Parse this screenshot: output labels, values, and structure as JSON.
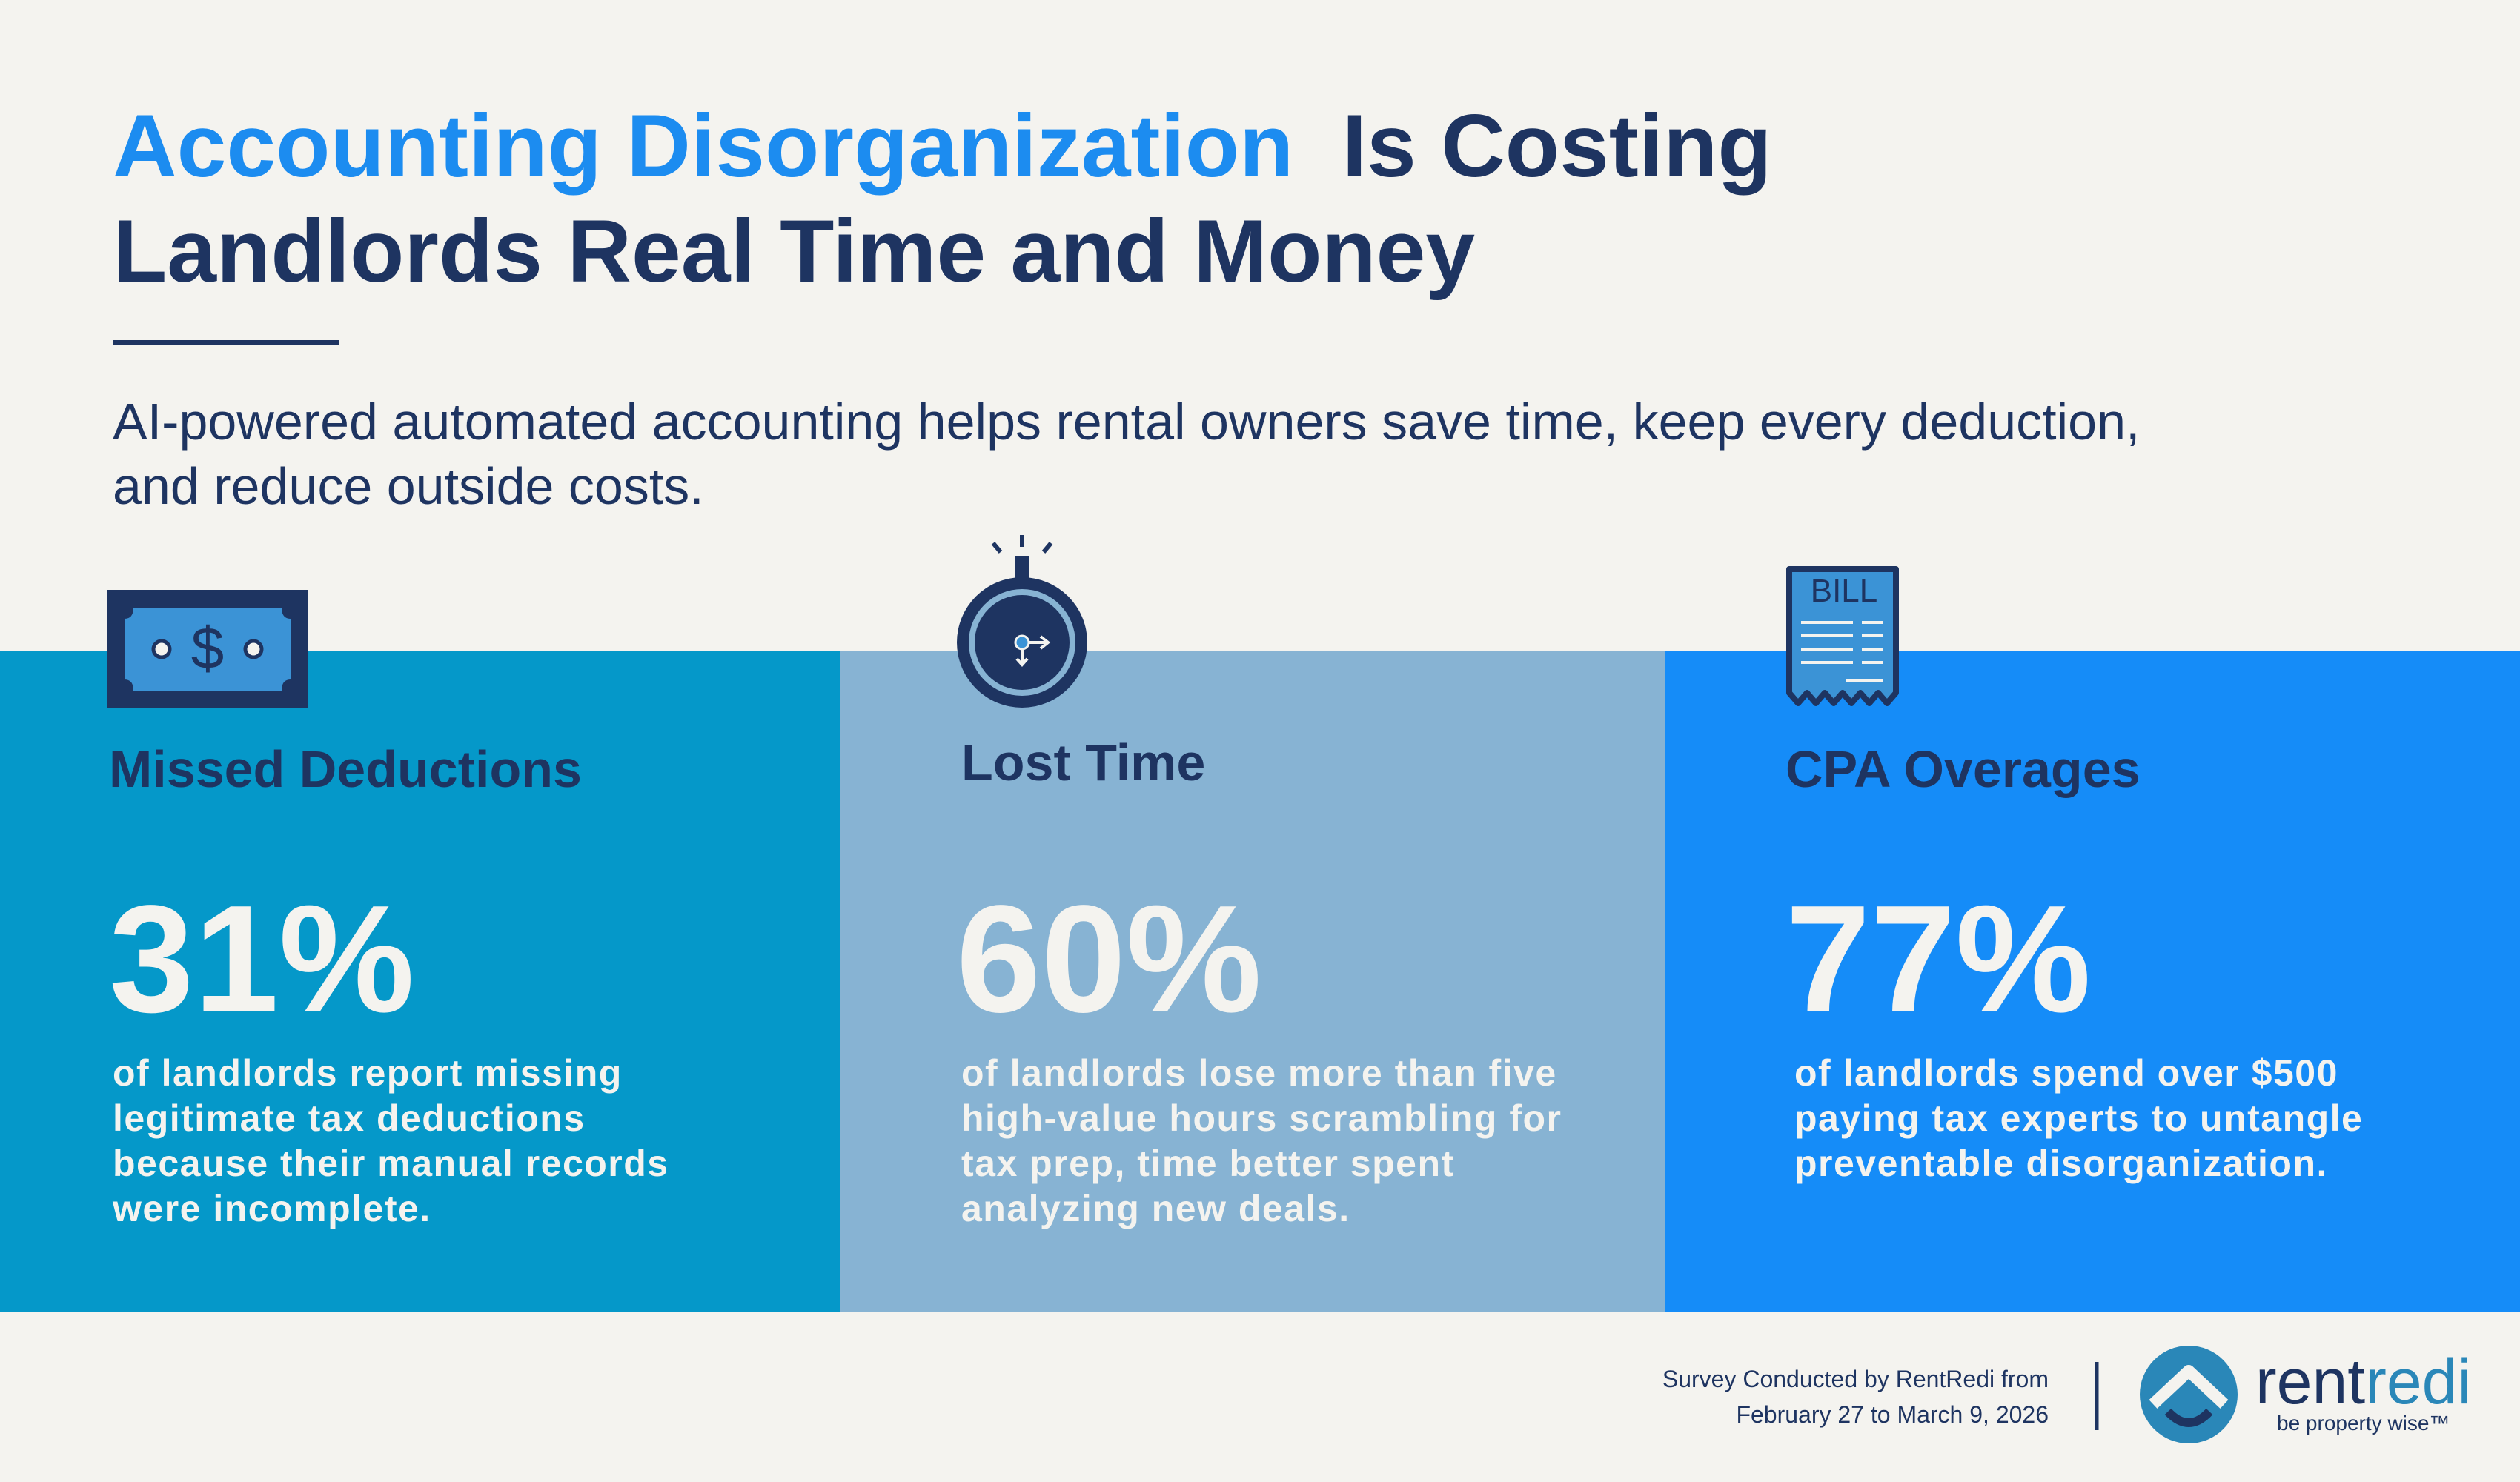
{
  "header": {
    "title_highlight": "Accounting Disorganization",
    "title_line1_rest": "Is Costing",
    "title_line2": "Landlords Real Time and Money",
    "subtitle_lines": [
      "AI-powered automated accounting helps rental owners save time, keep every deduction,",
      "and reduce outside costs."
    ]
  },
  "cards": [
    {
      "icon_label": "$",
      "title": "Missed Deductions",
      "stat": "31%",
      "description_lines": [
        "of landlords report missing",
        "legitimate tax deductions",
        "because their manual records",
        "were incomplete."
      ]
    },
    {
      "title": "Lost Time",
      "stat": "60%",
      "description_lines": [
        "of landlords lose more than five",
        "high-value hours scrambling for",
        "tax prep, time better spent",
        "analyzing new deals."
      ]
    },
    {
      "icon_label": "BILL",
      "title": "CPA Overages",
      "stat": "77%",
      "description_lines": [
        "of landlords spend over $500",
        "paying tax experts to untangle",
        "preventable disorganization."
      ]
    }
  ],
  "footer": {
    "survey_lines": [
      "Survey Conducted by RentRedi from",
      "February 27 to March 9, 2026"
    ],
    "logo_part1": "rent",
    "logo_part2": "redi",
    "tagline": "be property wise™"
  }
}
